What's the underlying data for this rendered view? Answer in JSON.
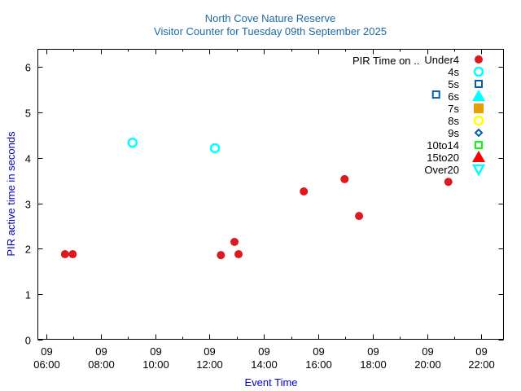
{
  "chart_data": {
    "type": "scatter",
    "title": "North Cove Nature Reserve",
    "subtitle": "Visitor Counter for Tuesday 09th September 2025",
    "xlabel": "Event Time",
    "ylabel": "PIR active time in seconds",
    "xlim_hours": [
      5.67,
      22.83
    ],
    "ylim": [
      0,
      6.4
    ],
    "grid": false,
    "legend_position": "top-right",
    "legend_title": "PIR Time on ..",
    "x_ticks": [
      {
        "hour": 6,
        "day": "09",
        "time": "06:00"
      },
      {
        "hour": 8,
        "day": "09",
        "time": "08:00"
      },
      {
        "hour": 10,
        "day": "09",
        "time": "10:00"
      },
      {
        "hour": 12,
        "day": "09",
        "time": "12:00"
      },
      {
        "hour": 14,
        "day": "09",
        "time": "14:00"
      },
      {
        "hour": 16,
        "day": "09",
        "time": "16:00"
      },
      {
        "hour": 18,
        "day": "09",
        "time": "18:00"
      },
      {
        "hour": 20,
        "day": "09",
        "time": "20:00"
      },
      {
        "hour": 22,
        "day": "09",
        "time": "22:00"
      }
    ],
    "x_minor_ticks": [
      7,
      9,
      11,
      13,
      15,
      17,
      19,
      21
    ],
    "y_ticks": [
      0,
      1,
      2,
      3,
      4,
      5,
      6
    ],
    "series": [
      {
        "name": "Under4",
        "marker": "filled-circle",
        "color": "#dd181f",
        "points": [
          {
            "time": "06:41",
            "value": 1.88
          },
          {
            "time": "06:58",
            "value": 1.88
          },
          {
            "time": "12:25",
            "value": 1.86
          },
          {
            "time": "12:55",
            "value": 2.15
          },
          {
            "time": "13:04",
            "value": 1.88
          },
          {
            "time": "15:28",
            "value": 3.26
          },
          {
            "time": "16:58",
            "value": 3.53
          },
          {
            "time": "17:30",
            "value": 2.72
          },
          {
            "time": "20:47",
            "value": 3.47
          }
        ]
      },
      {
        "name": "4s",
        "marker": "open-circle",
        "color": "#00ffff",
        "points": [
          {
            "time": "09:10",
            "value": 4.33
          },
          {
            "time": "12:12",
            "value": 4.21
          }
        ]
      },
      {
        "name": "5s",
        "marker": "open-square",
        "color": "#0060ad",
        "points": [
          {
            "time": "20:20",
            "value": 5.39
          }
        ]
      },
      {
        "name": "6s",
        "marker": "filled-triangle-up",
        "color": "#00ffff",
        "points": []
      },
      {
        "name": "7s",
        "marker": "filled-square",
        "color": "#e69f00",
        "points": []
      },
      {
        "name": "8s",
        "marker": "open-circle",
        "color": "#ffff00",
        "points": []
      },
      {
        "name": "9s",
        "marker": "open-diamond",
        "color": "#0060ad",
        "points": []
      },
      {
        "name": "10to14",
        "marker": "open-square",
        "color": "#00ff00",
        "points": []
      },
      {
        "name": "15to20",
        "marker": "filled-triangle-up",
        "color": "#ff0000",
        "points": []
      },
      {
        "name": "Over20",
        "marker": "open-triangle-down",
        "color": "#00ffff",
        "points": []
      }
    ]
  },
  "colors": {
    "title": "#1b6aa5",
    "axis_label": "#0000cc",
    "axis": "#000000"
  }
}
